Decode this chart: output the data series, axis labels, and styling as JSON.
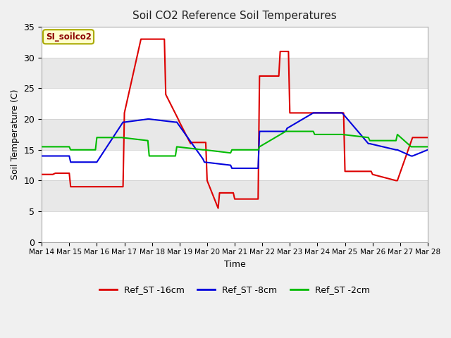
{
  "title": "Soil CO2 Reference Soil Temperatures",
  "xlabel": "Time",
  "ylabel": "Soil Temperature (C)",
  "annotation": "SI_soilco2",
  "ylim": [
    0,
    35
  ],
  "xlim": [
    0,
    14
  ],
  "xtick_labels": [
    "Mar 14",
    "Mar 15",
    "Mar 16",
    "Mar 17",
    "Mar 18",
    "Mar 19",
    "Mar 20",
    "Mar 21",
    "Mar 22",
    "Mar 23",
    "Mar 24",
    "Mar 25",
    "Mar 26",
    "Mar 27",
    "Mar 28"
  ],
  "ytick_values": [
    0,
    5,
    10,
    15,
    20,
    25,
    30,
    35
  ],
  "series": {
    "Ref_ST -16cm": {
      "color": "#dd0000",
      "x": [
        0,
        0.4,
        0.5,
        1.0,
        1.05,
        1.9,
        1.95,
        2.95,
        3.0,
        3.6,
        3.65,
        4.45,
        4.5,
        4.95,
        5.0,
        5.4,
        5.45,
        5.95,
        6.0,
        6.4,
        6.45,
        6.95,
        7.0,
        7.85,
        7.9,
        8.6,
        8.65,
        8.95,
        9.0,
        9.9,
        10.0,
        10.95,
        11.0,
        11.95,
        12.0,
        12.85,
        12.9,
        13.45,
        13.5,
        14.0
      ],
      "y": [
        11,
        11,
        11.2,
        11.2,
        9,
        9,
        9,
        9,
        21,
        33,
        33,
        33,
        24,
        20,
        19.5,
        16,
        16.2,
        16.2,
        10,
        5.5,
        8,
        8,
        7,
        7,
        27,
        27,
        31,
        31,
        21,
        21,
        21,
        21,
        11.5,
        11.5,
        11,
        10,
        10,
        17,
        17,
        17
      ]
    },
    "Ref_ST -8cm": {
      "color": "#0000dd",
      "x": [
        0,
        1.0,
        1.05,
        1.95,
        2.0,
        2.95,
        3.0,
        3.85,
        3.9,
        4.85,
        4.9,
        5.85,
        5.9,
        6.85,
        6.9,
        7.85,
        7.9,
        8.85,
        8.9,
        9.85,
        9.9,
        10.85,
        10.9,
        11.85,
        11.9,
        12.85,
        12.9,
        13.4,
        13.45,
        14.0
      ],
      "y": [
        14,
        14,
        13,
        13,
        13,
        19.5,
        19.5,
        20,
        20,
        19.5,
        19.5,
        13.5,
        13,
        12.5,
        12,
        12,
        18,
        18,
        18.5,
        21,
        21,
        21,
        21,
        16,
        16,
        15,
        15,
        14,
        14,
        15
      ]
    },
    "Ref_ST -2cm": {
      "color": "#00bb00",
      "x": [
        0,
        1.0,
        1.05,
        1.95,
        2.0,
        2.85,
        2.9,
        3.85,
        3.9,
        4.85,
        4.9,
        5.85,
        5.9,
        6.85,
        6.9,
        7.85,
        7.9,
        8.85,
        8.9,
        9.85,
        9.9,
        10.85,
        10.9,
        11.85,
        11.9,
        12.85,
        12.9,
        13.4,
        13.45,
        14.0
      ],
      "y": [
        15.5,
        15.5,
        15,
        15,
        17,
        17,
        17,
        16.5,
        14,
        14,
        15.5,
        15,
        15,
        14.5,
        15,
        15,
        15.5,
        18,
        18,
        18,
        17.5,
        17.5,
        17.5,
        17,
        16.5,
        16.5,
        17.5,
        15.5,
        15.5,
        15.5
      ]
    }
  },
  "bg_bands": [
    [
      0,
      5,
      "#ffffff"
    ],
    [
      5,
      10,
      "#e8e8e8"
    ],
    [
      10,
      15,
      "#ffffff"
    ],
    [
      15,
      20,
      "#e8e8e8"
    ],
    [
      20,
      25,
      "#ffffff"
    ],
    [
      25,
      30,
      "#e8e8e8"
    ],
    [
      30,
      35,
      "#ffffff"
    ]
  ],
  "plot_bg_color": "#ffffff",
  "fig_bg_color": "#f0f0f0",
  "grid_color": "#ffffff",
  "legend_entries": [
    "Ref_ST -16cm",
    "Ref_ST -8cm",
    "Ref_ST -2cm"
  ],
  "legend_colors": [
    "#dd0000",
    "#0000dd",
    "#00bb00"
  ]
}
